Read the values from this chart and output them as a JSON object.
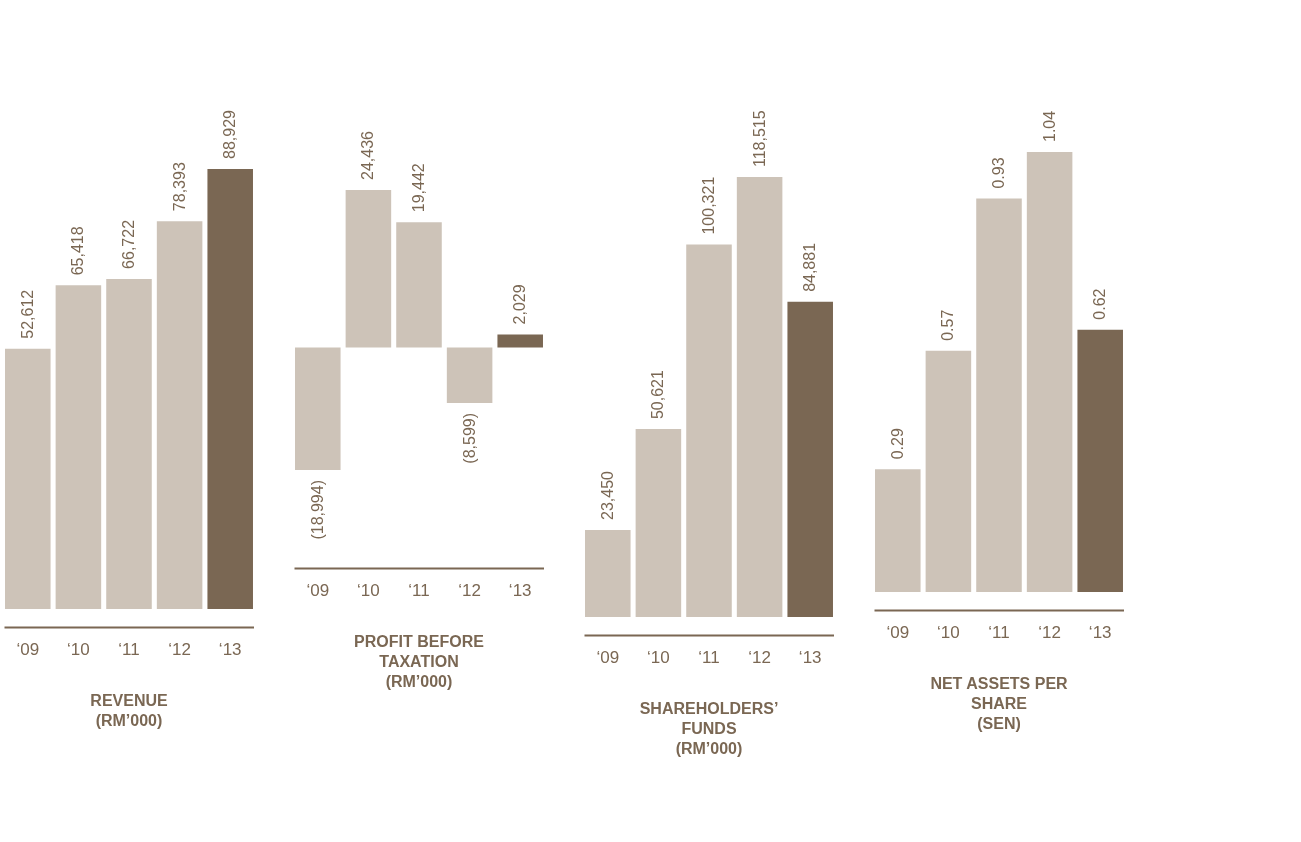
{
  "chart_data": [
    {
      "type": "bar",
      "title": "REVENUE\n(RM’000)",
      "categories": [
        "‘09",
        "‘10",
        "‘11",
        "‘12",
        "‘13"
      ],
      "values": [
        52612,
        65418,
        66722,
        78393,
        88929
      ],
      "colors": [
        "#cdc3b8",
        "#cdc3b8",
        "#cdc3b8",
        "#cdc3b8",
        "#7a6753"
      ],
      "value_labels": [
        "52,612",
        "65,418",
        "66,722",
        "78,393",
        "88,929"
      ]
    },
    {
      "type": "bar",
      "title": "PROFIT BEFORE\nTAXATION\n(RM’000)",
      "categories": [
        "‘09",
        "‘10",
        "‘11",
        "‘12",
        "‘13"
      ],
      "values": [
        -18994,
        24436,
        19442,
        -8599,
        2029
      ],
      "colors": [
        "#cdc3b8",
        "#cdc3b8",
        "#cdc3b8",
        "#cdc3b8",
        "#7a6753"
      ],
      "value_labels": [
        "(18,994)",
        "24,436",
        "19,442",
        "(8,599)",
        "2,029"
      ]
    },
    {
      "type": "bar",
      "title": "SHAREHOLDERS’\nFUNDS\n(RM’000)",
      "categories": [
        "‘09",
        "‘10",
        "‘11",
        "‘12",
        "‘13"
      ],
      "values": [
        23450,
        50621,
        100321,
        118515,
        84881
      ],
      "colors": [
        "#cdc3b8",
        "#cdc3b8",
        "#cdc3b8",
        "#cdc3b8",
        "#7a6753"
      ],
      "value_labels": [
        "23,450",
        "50,621",
        "100,321",
        "118,515",
        "84,881"
      ]
    },
    {
      "type": "bar",
      "title": "NET ASSETS PER\nSHARE\n(SEN)",
      "categories": [
        "‘09",
        "‘10",
        "‘11",
        "‘12",
        "‘13"
      ],
      "values": [
        0.29,
        0.57,
        0.93,
        1.04,
        0.62
      ],
      "colors": [
        "#cdc3b8",
        "#cdc3b8",
        "#cdc3b8",
        "#cdc3b8",
        "#7a6753"
      ],
      "value_labels": [
        "0.29",
        "0.57",
        "0.93",
        "1.04",
        "0.62"
      ]
    }
  ]
}
